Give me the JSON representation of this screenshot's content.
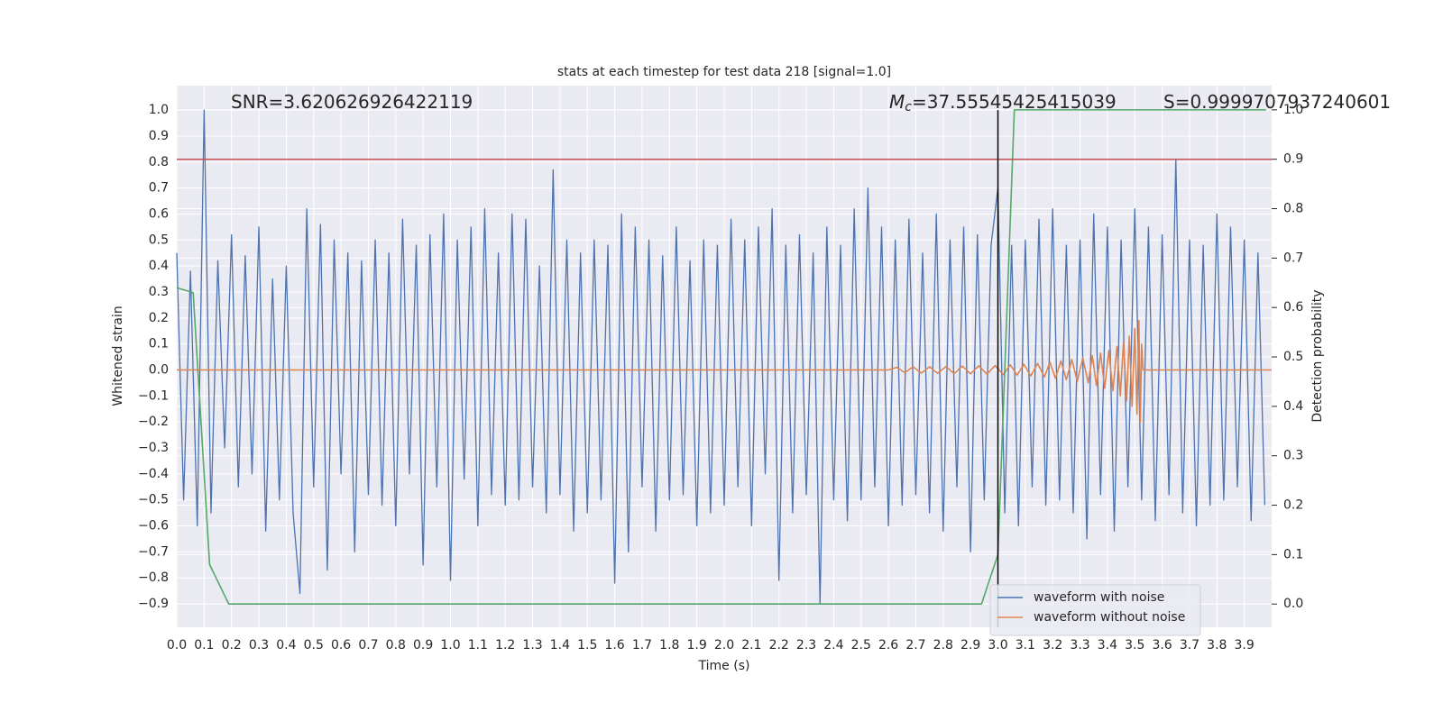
{
  "chart_data": {
    "type": "line",
    "title": "stats at each timestep for test data 218 [signal=1.0]",
    "xlabel": "Time (s)",
    "ylabel": "Whitened strain",
    "y2label": "Detection probability",
    "xlim": [
      0,
      4.0
    ],
    "ylim": [
      -0.99,
      1.094
    ],
    "y2lim": [
      -0.047,
      1.049
    ],
    "grid": true,
    "legend": "lower right",
    "xticks": [
      {
        "value": 0.0,
        "label": "0.0"
      },
      0.1,
      0.2,
      0.3,
      0.4,
      0.5,
      0.6,
      0.7,
      0.8,
      0.9,
      {
        "value": 1.0,
        "label": "1.0"
      },
      1.1,
      1.2,
      1.3,
      1.4,
      1.5,
      1.6,
      1.7,
      1.8,
      1.9,
      {
        "value": 2.0,
        "label": "2.0"
      },
      2.1,
      2.2,
      2.3,
      2.4,
      2.5,
      2.6,
      2.7,
      2.8,
      2.9,
      {
        "value": 3.0,
        "label": "3.0"
      },
      3.1,
      3.2,
      3.3,
      3.4,
      3.5,
      3.6,
      3.7,
      3.8,
      3.9
    ],
    "yticks": [
      {
        "value": -0.9,
        "label": "−0.9"
      },
      {
        "value": -0.8,
        "label": "−0.8"
      },
      {
        "value": -0.7,
        "label": "−0.7"
      },
      {
        "value": -0.6,
        "label": "−0.6"
      },
      {
        "value": -0.5,
        "label": "−0.5"
      },
      {
        "value": -0.4,
        "label": "−0.4"
      },
      {
        "value": -0.3,
        "label": "−0.3"
      },
      {
        "value": -0.2,
        "label": "−0.2"
      },
      {
        "value": -0.1,
        "label": "−0.1"
      },
      {
        "value": 0.0,
        "label": "0.0"
      },
      0.1,
      0.2,
      0.3,
      0.4,
      0.5,
      0.6,
      0.7,
      0.8,
      0.9,
      {
        "value": 1.0,
        "label": "1.0"
      }
    ],
    "y2ticks": [
      {
        "value": 0.0,
        "label": "0.0"
      },
      0.1,
      0.2,
      0.3,
      0.4,
      0.5,
      0.6,
      0.7,
      0.8,
      0.9,
      {
        "value": 1.0,
        "label": "1.0"
      }
    ],
    "series": [
      {
        "name": "waveform with noise",
        "color": "#4c72b0",
        "x": [
          0,
          0.025,
          0.05,
          0.075,
          0.1,
          0.125,
          0.15,
          0.175,
          0.2,
          0.225,
          0.25,
          0.275,
          0.3,
          0.325,
          0.35,
          0.375,
          0.4,
          0.425,
          0.45,
          0.475,
          0.5,
          0.525,
          0.55,
          0.575,
          0.6,
          0.625,
          0.65,
          0.675,
          0.7,
          0.725,
          0.75,
          0.775,
          0.8,
          0.825,
          0.85,
          0.875,
          0.9,
          0.925,
          0.95,
          0.975,
          1,
          1.025,
          1.05,
          1.075,
          1.1,
          1.125,
          1.15,
          1.175,
          1.2,
          1.225,
          1.25,
          1.275,
          1.3,
          1.325,
          1.35,
          1.375,
          1.4,
          1.425,
          1.45,
          1.475,
          1.5,
          1.525,
          1.55,
          1.575,
          1.6,
          1.625,
          1.65,
          1.675,
          1.7,
          1.725,
          1.75,
          1.775,
          1.8,
          1.825,
          1.85,
          1.875,
          1.9,
          1.925,
          1.95,
          1.975,
          2,
          2.025,
          2.05,
          2.075,
          2.1,
          2.125,
          2.15,
          2.175,
          2.2,
          2.225,
          2.25,
          2.275,
          2.3,
          2.325,
          2.35,
          2.375,
          2.4,
          2.425,
          2.45,
          2.475,
          2.5,
          2.525,
          2.55,
          2.575,
          2.6,
          2.625,
          2.65,
          2.675,
          2.7,
          2.725,
          2.75,
          2.775,
          2.8,
          2.825,
          2.85,
          2.875,
          2.9,
          2.925,
          2.95,
          2.975,
          3,
          3.025,
          3.05,
          3.075,
          3.1,
          3.125,
          3.15,
          3.175,
          3.2,
          3.225,
          3.25,
          3.275,
          3.3,
          3.325,
          3.35,
          3.375,
          3.4,
          3.425,
          3.45,
          3.475,
          3.5,
          3.525,
          3.55,
          3.575,
          3.6,
          3.625,
          3.65,
          3.675,
          3.7,
          3.725,
          3.75,
          3.775,
          3.8,
          3.825,
          3.85,
          3.875,
          3.9,
          3.925,
          3.95,
          3.975
        ],
        "values": [
          0.45,
          -0.5,
          0.38,
          -0.6,
          1.0,
          -0.55,
          0.42,
          -0.3,
          0.52,
          -0.45,
          0.44,
          -0.4,
          0.55,
          -0.62,
          0.35,
          -0.5,
          0.4,
          -0.55,
          -0.86,
          0.62,
          -0.45,
          0.56,
          -0.77,
          0.5,
          -0.4,
          0.45,
          -0.7,
          0.42,
          -0.48,
          0.5,
          -0.52,
          0.45,
          -0.6,
          0.58,
          -0.4,
          0.48,
          -0.75,
          0.52,
          -0.45,
          0.6,
          -0.81,
          0.5,
          -0.42,
          0.55,
          -0.6,
          0.62,
          -0.48,
          0.45,
          -0.52,
          0.6,
          -0.5,
          0.58,
          -0.45,
          0.4,
          -0.55,
          0.77,
          -0.48,
          0.5,
          -0.62,
          0.45,
          -0.55,
          0.5,
          -0.5,
          0.48,
          -0.82,
          0.6,
          -0.7,
          0.55,
          -0.45,
          0.5,
          -0.62,
          0.44,
          -0.5,
          0.55,
          -0.48,
          0.42,
          -0.6,
          0.5,
          -0.55,
          0.48,
          -0.52,
          0.58,
          -0.45,
          0.5,
          -0.6,
          0.55,
          -0.4,
          0.62,
          -0.81,
          0.48,
          -0.55,
          0.52,
          -0.48,
          0.45,
          -0.9,
          0.55,
          -0.5,
          0.48,
          -0.58,
          0.62,
          -0.5,
          0.7,
          -0.45,
          0.55,
          -0.6,
          0.5,
          -0.52,
          0.58,
          -0.48,
          0.45,
          -0.55,
          0.6,
          -0.62,
          0.5,
          -0.45,
          0.55,
          -0.7,
          0.52,
          -0.5,
          0.48,
          0.7,
          -0.55,
          0.48,
          -0.6,
          0.5,
          -0.45,
          0.58,
          -0.52,
          0.62,
          -0.5,
          0.48,
          -0.55,
          0.5,
          -0.65,
          0.6,
          -0.48,
          0.55,
          -0.62,
          0.5,
          -0.45,
          0.62,
          -0.5,
          0.55,
          -0.58,
          0.52,
          -0.48,
          0.81,
          -0.55,
          0.5,
          -0.6,
          0.48,
          -0.52,
          0.6,
          -0.5,
          0.55,
          -0.45,
          0.5,
          -0.58,
          0.45,
          -0.52
        ]
      },
      {
        "name": "waveform without noise",
        "color": "#dd8452",
        "x": [
          0,
          2.6,
          2.63,
          2.66,
          2.69,
          2.72,
          2.75,
          2.78,
          2.81,
          2.84,
          2.87,
          2.9,
          2.93,
          2.96,
          2.99,
          3.02,
          3.045,
          3.07,
          3.095,
          3.12,
          3.145,
          3.17,
          3.19,
          3.21,
          3.23,
          3.25,
          3.27,
          3.29,
          3.31,
          3.33,
          3.345,
          3.36,
          3.375,
          3.39,
          3.405,
          3.42,
          3.435,
          3.447,
          3.459,
          3.47,
          3.48,
          3.49,
          3.5,
          3.508,
          3.515,
          3.52,
          3.525,
          3.53,
          4.0
        ],
        "values": [
          0,
          0,
          0.01,
          -0.01,
          0.012,
          -0.012,
          0.012,
          -0.013,
          0.013,
          -0.014,
          0.015,
          -0.015,
          0.016,
          -0.016,
          0.017,
          -0.018,
          0.02,
          -0.02,
          0.022,
          -0.023,
          0.025,
          -0.027,
          0.03,
          -0.032,
          0.035,
          -0.037,
          0.04,
          -0.043,
          0.046,
          -0.05,
          0.055,
          -0.06,
          0.065,
          -0.07,
          0.075,
          -0.08,
          0.09,
          -0.1,
          0.11,
          -0.12,
          0.13,
          -0.14,
          0.16,
          -0.17,
          0.19,
          -0.2,
          0.1,
          0,
          0
        ]
      },
      {
        "color": "#55a868",
        "axis": "y2",
        "x": [
          0,
          0.06,
          0.12,
          0.19,
          2.94,
          3.0,
          3.06,
          3.98
        ],
        "values": [
          0.64,
          0.63,
          0.08,
          0.0,
          0.0,
          0.1,
          1.0,
          1.0
        ]
      }
    ],
    "hlines": [
      {
        "value": 0.9,
        "axis": "y2",
        "color": "#c44e52"
      }
    ],
    "vlines": [
      {
        "value": 3.0,
        "ymax": 1.0,
        "color": "#000000"
      }
    ],
    "annotations": [
      {
        "text": "SNR=3.620626926422119"
      },
      {
        "symbol": "M",
        "subscript": "c",
        "text": "=37.55545425415039"
      },
      {
        "text": "S=0.9999707937240601"
      }
    ]
  }
}
